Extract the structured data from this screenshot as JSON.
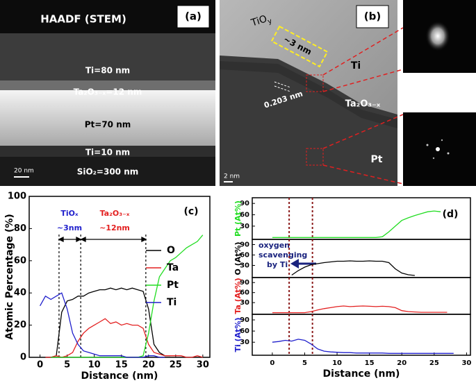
{
  "micrographs": {
    "a": {
      "label": "(a)",
      "title": "HAADF (STEM)",
      "layers": [
        "Ti=80 nm",
        "Ta₂O₃₋ₓ=12 nm",
        "Pt=70 nm",
        "Ti=10 nm",
        "SiO₂=300 nm"
      ],
      "scale_bar": "20 nm"
    },
    "b": {
      "label": "(b)",
      "tioy": [
        "TiO",
        "y"
      ],
      "thickness": "~3 nm",
      "spacing": "0.203 nm",
      "layers": [
        "Ti",
        "Ta₂O₃₋ₓ",
        "Pt"
      ],
      "scale_bar": "2 nm"
    }
  },
  "chart_data": [
    {
      "type": "line",
      "panel_label": "(c)",
      "xlabel": "Distance (nm)",
      "ylabel": "Atomic Percentage (%)",
      "annotations": [
        "TiOₓ",
        "~3nm",
        "Ta₂O₃₋ₓ",
        "~12nm"
      ],
      "x": [
        0,
        1,
        2,
        3,
        4,
        5,
        6,
        7,
        8,
        9,
        10,
        11,
        12,
        13,
        14,
        15,
        16,
        17,
        18,
        19,
        20,
        21,
        22,
        23,
        24,
        25,
        26,
        27,
        28,
        29,
        30
      ],
      "xlim": [
        -2,
        31.3
      ],
      "xticks": [
        0,
        5,
        10,
        15,
        20,
        25,
        30
      ],
      "ylim": [
        0,
        100
      ],
      "yticks": [
        0,
        20,
        40,
        60,
        80,
        100
      ],
      "vlines": [
        3.5,
        7.5,
        19.5
      ],
      "vline_color": "#000000",
      "legend": "center right",
      "series": [
        {
          "name": "O",
          "color": "#000000",
          "values": [
            null,
            null,
            0,
            1,
            28,
            35,
            36,
            38,
            38,
            40,
            41,
            42,
            42,
            43,
            42,
            43,
            42,
            43,
            42,
            41,
            30,
            8,
            3,
            1,
            1,
            null,
            null,
            null,
            null,
            null,
            null
          ]
        },
        {
          "name": "Ta",
          "color": "#e32020",
          "values": [
            null,
            0,
            0,
            1,
            0,
            1,
            3,
            10,
            15,
            18,
            20,
            22,
            24,
            21,
            22,
            20,
            21,
            20,
            20,
            18,
            8,
            3,
            2,
            1,
            1,
            1,
            1,
            0,
            0,
            1,
            0
          ]
        },
        {
          "name": "Pt",
          "color": "#22dd22",
          "values": [
            null,
            null,
            0,
            0,
            0,
            0,
            0,
            0,
            0,
            0,
            0,
            0,
            0,
            0,
            0,
            0,
            0,
            0,
            0,
            1,
            15,
            35,
            50,
            55,
            60,
            62,
            65,
            68,
            70,
            72,
            76
          ]
        },
        {
          "name": "Ti",
          "color": "#1f1fcc",
          "values": [
            32,
            38,
            36,
            38,
            40,
            30,
            15,
            8,
            4,
            3,
            2,
            1,
            1,
            1,
            1,
            1,
            0,
            0,
            0,
            0,
            1,
            1,
            0,
            0,
            null,
            null,
            null,
            null,
            null,
            null,
            null
          ]
        }
      ]
    },
    {
      "type": "line",
      "panel_label": "(d)",
      "ylabel": "Pt (At%)",
      "x": [
        0,
        1,
        2,
        3,
        4,
        5,
        6,
        7,
        8,
        9,
        10,
        11,
        12,
        13,
        14,
        15,
        16,
        17,
        18,
        19,
        20,
        21,
        22,
        23,
        24,
        25,
        26,
        27,
        28,
        29,
        30
      ],
      "xlim": [
        -3.1,
        30.6
      ],
      "ylim": [
        -5,
        105
      ],
      "yticks": [
        30,
        60,
        90
      ],
      "vlines": [
        2.6,
        6.2
      ],
      "vline_color": "#8b1a1a",
      "series": [
        {
          "color": "#22dd22",
          "values": [
            0,
            0,
            0,
            0,
            0,
            0,
            0,
            0,
            0,
            0,
            0,
            0,
            0,
            0,
            0,
            0,
            0,
            2,
            15,
            30,
            45,
            52,
            58,
            63,
            68,
            70,
            68,
            null,
            null,
            null,
            null
          ]
        }
      ]
    },
    {
      "type": "line",
      "ylabel": "O (At%)",
      "annotations": [
        "oxygen",
        "scavenging",
        "by Ti"
      ],
      "x": [
        0,
        1,
        2,
        3,
        4,
        5,
        6,
        7,
        8,
        9,
        10,
        11,
        12,
        13,
        14,
        15,
        16,
        17,
        18,
        19,
        20,
        21,
        22,
        23,
        24,
        25,
        26,
        27,
        28,
        29,
        30
      ],
      "xlim": [
        -3.1,
        30.6
      ],
      "ylim": [
        -5,
        105
      ],
      "yticks": [
        30,
        60,
        90
      ],
      "vlines": [
        2.6,
        6.2
      ],
      "vline_color": "#8b1a1a",
      "series": [
        {
          "color": "#000000",
          "values": [
            null,
            null,
            null,
            2,
            15,
            25,
            32,
            35,
            38,
            40,
            42,
            42,
            43,
            42,
            42,
            43,
            42,
            42,
            38,
            20,
            8,
            3,
            1,
            null,
            null,
            null,
            null,
            null,
            null,
            null,
            null
          ]
        }
      ]
    },
    {
      "type": "line",
      "ylabel": "Ta (At%)",
      "x": [
        0,
        1,
        2,
        3,
        4,
        5,
        6,
        7,
        8,
        9,
        10,
        11,
        12,
        13,
        14,
        15,
        16,
        17,
        18,
        19,
        20,
        21,
        22,
        23,
        24,
        25,
        26,
        27,
        28,
        29,
        30
      ],
      "xlim": [
        -3.1,
        30.6
      ],
      "ylim": [
        -5,
        105
      ],
      "yticks": [
        30,
        60,
        90
      ],
      "vlines": [
        2.6,
        6.2
      ],
      "vline_color": "#8b1a1a",
      "series": [
        {
          "color": "#e32020",
          "values": [
            0,
            0,
            0,
            0,
            0,
            0,
            3,
            8,
            12,
            15,
            18,
            20,
            18,
            19,
            20,
            19,
            18,
            19,
            18,
            15,
            6,
            3,
            2,
            1,
            1,
            1,
            1,
            1,
            null,
            null,
            null
          ]
        }
      ]
    },
    {
      "type": "line",
      "ylabel": "Ti (At%)",
      "xlabel": "Distance (nm)",
      "x": [
        0,
        1,
        2,
        3,
        4,
        5,
        6,
        7,
        8,
        9,
        10,
        11,
        12,
        13,
        14,
        15,
        16,
        17,
        18,
        19,
        20,
        21,
        22,
        23,
        24,
        25,
        26,
        27,
        28,
        29,
        30
      ],
      "xlim": [
        -3.1,
        30.6
      ],
      "xticks": [
        0,
        5,
        10,
        15,
        20,
        25,
        30
      ],
      "ylim": [
        -5,
        105
      ],
      "yticks": [
        30,
        60,
        90
      ],
      "vlines": [
        2.6,
        6.2
      ],
      "vline_color": "#8b1a1a",
      "series": [
        {
          "color": "#1f1fcc",
          "values": [
            30,
            32,
            35,
            33,
            38,
            35,
            25,
            12,
            6,
            4,
            3,
            2,
            2,
            1,
            1,
            1,
            1,
            1,
            0,
            0,
            0,
            0,
            0,
            0,
            0,
            0,
            0,
            0,
            0,
            null,
            null
          ]
        }
      ]
    }
  ]
}
